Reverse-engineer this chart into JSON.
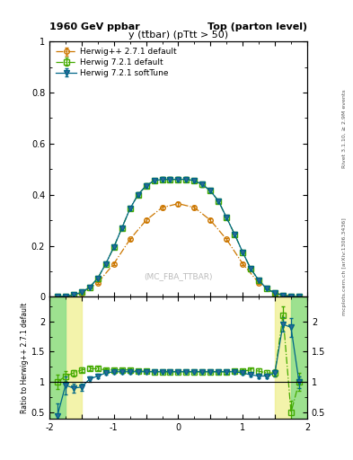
{
  "title_left": "1960 GeV ppbar",
  "title_right": "Top (parton level)",
  "main_title": "y (tt̄bar) (pTtt > 50)",
  "watermark": "(MC_FBA_TTBAR)",
  "rivet_label": "Rivet 3.1.10, ≥ 2.9M events",
  "mcplots_label": "mcplots.cern.ch [arXiv:1306.3436]",
  "ylabel_ratio": "Ratio to Herwig++ 2.7.1 default",
  "xlim": [
    -2.0,
    2.0
  ],
  "ylim_main": [
    0.0,
    1.0
  ],
  "ylim_ratio": [
    0.4,
    2.4
  ],
  "series": [
    {
      "label": "Herwig++ 2.7.1 default",
      "color": "#cc7700",
      "linestyle": "-.",
      "marker": "o",
      "markerfacecolor": "none",
      "markersize": 4,
      "x": [
        -1.75,
        -1.5,
        -1.25,
        -1.0,
        -0.75,
        -0.5,
        -0.25,
        0.0,
        0.25,
        0.5,
        0.75,
        1.0,
        1.25,
        1.5,
        1.75
      ],
      "y": [
        0.003,
        0.015,
        0.055,
        0.13,
        0.225,
        0.3,
        0.35,
        0.365,
        0.35,
        0.3,
        0.225,
        0.13,
        0.055,
        0.015,
        0.003
      ],
      "yerr": [
        0.001,
        0.002,
        0.003,
        0.005,
        0.006,
        0.007,
        0.007,
        0.007,
        0.007,
        0.007,
        0.006,
        0.005,
        0.003,
        0.002,
        0.001
      ]
    },
    {
      "label": "Herwig 7.2.1 default",
      "color": "#44aa00",
      "linestyle": "-.",
      "marker": "s",
      "markerfacecolor": "none",
      "markersize": 4,
      "x": [
        -1.875,
        -1.75,
        -1.625,
        -1.5,
        -1.375,
        -1.25,
        -1.125,
        -1.0,
        -0.875,
        -0.75,
        -0.625,
        -0.5,
        -0.375,
        -0.25,
        -0.125,
        0.0,
        0.125,
        0.25,
        0.375,
        0.5,
        0.625,
        0.75,
        0.875,
        1.0,
        1.125,
        1.25,
        1.375,
        1.5,
        1.625,
        1.75,
        1.875
      ],
      "y": [
        0.001,
        0.003,
        0.008,
        0.018,
        0.038,
        0.073,
        0.13,
        0.195,
        0.27,
        0.345,
        0.4,
        0.435,
        0.455,
        0.46,
        0.46,
        0.46,
        0.46,
        0.455,
        0.44,
        0.415,
        0.375,
        0.31,
        0.245,
        0.175,
        0.11,
        0.065,
        0.032,
        0.015,
        0.006,
        0.002,
        0.001
      ],
      "yerr": [
        0.0005,
        0.001,
        0.001,
        0.002,
        0.003,
        0.004,
        0.005,
        0.006,
        0.007,
        0.007,
        0.008,
        0.008,
        0.008,
        0.008,
        0.008,
        0.008,
        0.008,
        0.008,
        0.008,
        0.007,
        0.007,
        0.007,
        0.006,
        0.006,
        0.005,
        0.004,
        0.003,
        0.002,
        0.001,
        0.001,
        0.001
      ]
    },
    {
      "label": "Herwig 7.2.1 softTune",
      "color": "#006688",
      "linestyle": "-",
      "marker": "v",
      "markerfacecolor": "#336699",
      "markersize": 4,
      "x": [
        -1.875,
        -1.75,
        -1.625,
        -1.5,
        -1.375,
        -1.25,
        -1.125,
        -1.0,
        -0.875,
        -0.75,
        -0.625,
        -0.5,
        -0.375,
        -0.25,
        -0.125,
        0.0,
        0.125,
        0.25,
        0.375,
        0.5,
        0.625,
        0.75,
        0.875,
        1.0,
        1.125,
        1.25,
        1.375,
        1.5,
        1.625,
        1.75,
        1.875
      ],
      "y": [
        0.001,
        0.003,
        0.008,
        0.018,
        0.038,
        0.073,
        0.13,
        0.195,
        0.27,
        0.345,
        0.4,
        0.435,
        0.455,
        0.46,
        0.46,
        0.46,
        0.46,
        0.455,
        0.44,
        0.415,
        0.375,
        0.31,
        0.245,
        0.175,
        0.11,
        0.065,
        0.032,
        0.015,
        0.006,
        0.002,
        0.001
      ],
      "yerr": [
        0.0005,
        0.001,
        0.001,
        0.002,
        0.003,
        0.004,
        0.005,
        0.006,
        0.007,
        0.007,
        0.008,
        0.008,
        0.008,
        0.008,
        0.008,
        0.008,
        0.008,
        0.008,
        0.008,
        0.007,
        0.007,
        0.007,
        0.006,
        0.006,
        0.005,
        0.004,
        0.003,
        0.002,
        0.001,
        0.001,
        0.001
      ]
    }
  ],
  "ratio_series": [
    {
      "label": "Herwig 7.2.1 default",
      "color": "#44aa00",
      "linestyle": "-.",
      "marker": "s",
      "markerfacecolor": "none",
      "markersize": 4,
      "x": [
        -1.875,
        -1.75,
        -1.625,
        -1.5,
        -1.375,
        -1.25,
        -1.125,
        -1.0,
        -0.875,
        -0.75,
        -0.625,
        -0.5,
        -0.375,
        -0.25,
        -0.125,
        0.0,
        0.125,
        0.25,
        0.375,
        0.5,
        0.625,
        0.75,
        0.875,
        1.0,
        1.125,
        1.25,
        1.375,
        1.5,
        1.625,
        1.75,
        1.875
      ],
      "y": [
        1.0,
        1.1,
        1.15,
        1.2,
        1.22,
        1.22,
        1.2,
        1.2,
        1.2,
        1.2,
        1.18,
        1.18,
        1.17,
        1.17,
        1.17,
        1.17,
        1.17,
        1.17,
        1.17,
        1.17,
        1.17,
        1.17,
        1.18,
        1.18,
        1.2,
        1.18,
        1.15,
        1.15,
        2.1,
        0.5,
        1.0
      ],
      "yerr": [
        0.12,
        0.08,
        0.05,
        0.04,
        0.03,
        0.03,
        0.03,
        0.03,
        0.03,
        0.03,
        0.02,
        0.02,
        0.02,
        0.02,
        0.02,
        0.02,
        0.02,
        0.02,
        0.02,
        0.02,
        0.02,
        0.03,
        0.03,
        0.03,
        0.03,
        0.04,
        0.05,
        0.06,
        0.15,
        0.2,
        0.15
      ]
    },
    {
      "label": "Herwig 7.2.1 softTune",
      "color": "#006688",
      "linestyle": "-",
      "marker": "v",
      "markerfacecolor": "#336699",
      "markersize": 4,
      "x": [
        -1.875,
        -1.75,
        -1.625,
        -1.5,
        -1.375,
        -1.25,
        -1.125,
        -1.0,
        -0.875,
        -0.75,
        -0.625,
        -0.5,
        -0.375,
        -0.25,
        -0.125,
        0.0,
        0.125,
        0.25,
        0.375,
        0.5,
        0.625,
        0.75,
        0.875,
        1.0,
        1.125,
        1.25,
        1.375,
        1.5,
        1.625,
        1.75,
        1.875
      ],
      "y": [
        0.45,
        0.95,
        0.9,
        0.92,
        1.05,
        1.1,
        1.15,
        1.17,
        1.17,
        1.17,
        1.17,
        1.17,
        1.17,
        1.17,
        1.17,
        1.17,
        1.17,
        1.17,
        1.17,
        1.17,
        1.17,
        1.17,
        1.17,
        1.15,
        1.12,
        1.1,
        1.1,
        1.15,
        1.95,
        1.9,
        1.0
      ],
      "yerr": [
        0.2,
        0.15,
        0.08,
        0.06,
        0.04,
        0.03,
        0.03,
        0.03,
        0.03,
        0.03,
        0.02,
        0.02,
        0.02,
        0.02,
        0.02,
        0.02,
        0.02,
        0.02,
        0.02,
        0.02,
        0.03,
        0.03,
        0.03,
        0.03,
        0.03,
        0.04,
        0.04,
        0.05,
        0.12,
        0.15,
        0.1
      ]
    }
  ],
  "yellow_band": {
    "xmin": -2.0,
    "xmax": -1.5,
    "ymin": 0.4,
    "ymax": 2.4
  },
  "yellow_band2": {
    "xmin": 1.5,
    "xmax": 2.0,
    "ymin": 0.4,
    "ymax": 2.4
  },
  "green_band": {
    "xmin": -2.0,
    "xmax": -1.75,
    "ymin": 0.4,
    "ymax": 2.4
  },
  "green_band2": {
    "xmin": 1.75,
    "xmax": 2.0,
    "ymin": 0.4,
    "ymax": 2.4
  }
}
